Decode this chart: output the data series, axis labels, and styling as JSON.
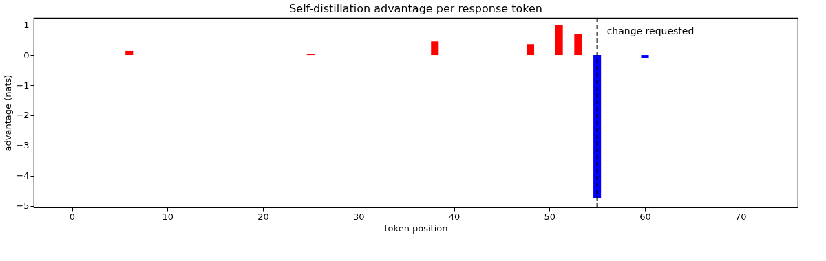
{
  "chart_data": {
    "type": "bar",
    "title": "Self-distillation advantage per response token",
    "xlabel": "token position",
    "ylabel": "advantage (nats)",
    "x": [
      6,
      25,
      38,
      48,
      51,
      53,
      55,
      60
    ],
    "values": [
      0.14,
      0.03,
      0.45,
      0.36,
      0.98,
      0.7,
      -4.75,
      -0.1
    ],
    "colors": [
      "#ff0000",
      "#ff0000",
      "#ff0000",
      "#ff0000",
      "#ff0000",
      "#ff0000",
      "#0000ff",
      "#0000ff"
    ],
    "xlim": [
      -4,
      76
    ],
    "xticks": [
      0,
      10,
      20,
      30,
      40,
      50,
      60,
      70
    ],
    "ylim": [
      -5.05,
      1.23
    ],
    "yticks": [
      -5,
      -4,
      -3,
      -2,
      -1,
      0,
      1
    ],
    "ref_lines": [
      {
        "axis": "x",
        "value": 55,
        "label": "change requested",
        "color": "#000000",
        "line_style": "dashed"
      }
    ],
    "grid": false
  }
}
